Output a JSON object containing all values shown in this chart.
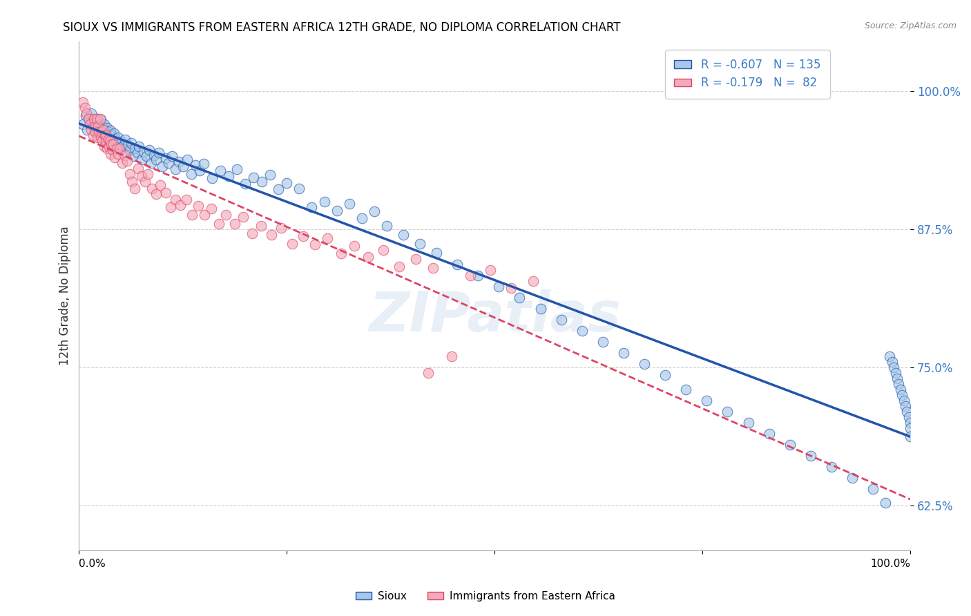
{
  "title": "SIOUX VS IMMIGRANTS FROM EASTERN AFRICA 12TH GRADE, NO DIPLOMA CORRELATION CHART",
  "source": "Source: ZipAtlas.com",
  "ylabel": "12th Grade, No Diploma",
  "yticks": [
    0.625,
    0.75,
    0.875,
    1.0
  ],
  "ytick_labels": [
    "62.5%",
    "75.0%",
    "87.5%",
    "100.0%"
  ],
  "xlim": [
    0.0,
    1.0
  ],
  "ylim": [
    0.585,
    1.045
  ],
  "legend_r1": "R = -0.607",
  "legend_n1": "N = 135",
  "legend_r2": "R = -0.179",
  "legend_n2": "N =  82",
  "color_blue": "#A8C8E8",
  "color_pink": "#F4AABB",
  "line_blue": "#2255AA",
  "line_pink": "#DD4466",
  "watermark": "ZIPatlas",
  "background": "#FFFFFF",
  "sioux_x": [
    0.005,
    0.008,
    0.01,
    0.012,
    0.015,
    0.016,
    0.018,
    0.019,
    0.02,
    0.021,
    0.022,
    0.023,
    0.024,
    0.025,
    0.026,
    0.027,
    0.028,
    0.029,
    0.03,
    0.031,
    0.032,
    0.033,
    0.034,
    0.035,
    0.036,
    0.037,
    0.038,
    0.039,
    0.04,
    0.041,
    0.042,
    0.043,
    0.044,
    0.045,
    0.047,
    0.049,
    0.051,
    0.053,
    0.055,
    0.057,
    0.059,
    0.061,
    0.063,
    0.065,
    0.067,
    0.07,
    0.072,
    0.075,
    0.078,
    0.081,
    0.084,
    0.087,
    0.09,
    0.093,
    0.096,
    0.1,
    0.104,
    0.108,
    0.112,
    0.116,
    0.12,
    0.125,
    0.13,
    0.135,
    0.14,
    0.145,
    0.15,
    0.16,
    0.17,
    0.18,
    0.19,
    0.2,
    0.21,
    0.22,
    0.23,
    0.24,
    0.25,
    0.265,
    0.28,
    0.295,
    0.31,
    0.325,
    0.34,
    0.355,
    0.37,
    0.39,
    0.41,
    0.43,
    0.455,
    0.48,
    0.505,
    0.53,
    0.555,
    0.58,
    0.605,
    0.63,
    0.655,
    0.68,
    0.705,
    0.73,
    0.755,
    0.78,
    0.805,
    0.83,
    0.855,
    0.88,
    0.905,
    0.93,
    0.955,
    0.97,
    0.975,
    0.978,
    0.98,
    0.982,
    0.984,
    0.986,
    0.988,
    0.99,
    0.992,
    0.994,
    0.996,
    0.998,
    1.0,
    1.0,
    1.0
  ],
  "sioux_y": [
    0.97,
    0.978,
    0.965,
    0.975,
    0.98,
    0.972,
    0.968,
    0.973,
    0.966,
    0.971,
    0.975,
    0.963,
    0.969,
    0.967,
    0.974,
    0.961,
    0.968,
    0.964,
    0.97,
    0.958,
    0.965,
    0.96,
    0.967,
    0.955,
    0.963,
    0.958,
    0.964,
    0.952,
    0.96,
    0.956,
    0.962,
    0.95,
    0.957,
    0.953,
    0.958,
    0.947,
    0.954,
    0.95,
    0.956,
    0.944,
    0.951,
    0.947,
    0.953,
    0.941,
    0.948,
    0.944,
    0.95,
    0.938,
    0.945,
    0.941,
    0.947,
    0.935,
    0.942,
    0.938,
    0.944,
    0.932,
    0.939,
    0.935,
    0.941,
    0.929,
    0.936,
    0.932,
    0.938,
    0.925,
    0.933,
    0.928,
    0.934,
    0.921,
    0.928,
    0.923,
    0.929,
    0.916,
    0.922,
    0.918,
    0.924,
    0.911,
    0.917,
    0.912,
    0.895,
    0.9,
    0.892,
    0.898,
    0.885,
    0.891,
    0.878,
    0.87,
    0.862,
    0.854,
    0.843,
    0.833,
    0.823,
    0.813,
    0.803,
    0.793,
    0.783,
    0.773,
    0.763,
    0.753,
    0.743,
    0.73,
    0.72,
    0.71,
    0.7,
    0.69,
    0.68,
    0.67,
    0.66,
    0.65,
    0.64,
    0.628,
    0.76,
    0.755,
    0.75,
    0.745,
    0.74,
    0.735,
    0.73,
    0.725,
    0.72,
    0.715,
    0.71,
    0.705,
    0.7,
    0.695,
    0.688
  ],
  "pink_x": [
    0.005,
    0.007,
    0.009,
    0.011,
    0.013,
    0.015,
    0.017,
    0.018,
    0.019,
    0.02,
    0.021,
    0.022,
    0.023,
    0.024,
    0.025,
    0.026,
    0.027,
    0.028,
    0.029,
    0.03,
    0.031,
    0.032,
    0.033,
    0.034,
    0.035,
    0.036,
    0.037,
    0.038,
    0.039,
    0.04,
    0.041,
    0.043,
    0.045,
    0.047,
    0.049,
    0.052,
    0.055,
    0.058,
    0.061,
    0.064,
    0.067,
    0.071,
    0.075,
    0.079,
    0.083,
    0.088,
    0.093,
    0.098,
    0.104,
    0.11,
    0.116,
    0.122,
    0.129,
    0.136,
    0.143,
    0.151,
    0.159,
    0.168,
    0.177,
    0.187,
    0.197,
    0.208,
    0.219,
    0.231,
    0.243,
    0.256,
    0.27,
    0.284,
    0.299,
    0.315,
    0.331,
    0.348,
    0.366,
    0.385,
    0.405,
    0.426,
    0.448,
    0.471,
    0.495,
    0.52,
    0.546,
    0.42
  ],
  "pink_y": [
    0.99,
    0.985,
    0.98,
    0.975,
    0.97,
    0.965,
    0.96,
    0.975,
    0.968,
    0.963,
    0.975,
    0.958,
    0.968,
    0.963,
    0.975,
    0.958,
    0.963,
    0.955,
    0.965,
    0.95,
    0.96,
    0.955,
    0.96,
    0.948,
    0.956,
    0.95,
    0.955,
    0.943,
    0.952,
    0.947,
    0.952,
    0.94,
    0.948,
    0.943,
    0.948,
    0.935,
    0.942,
    0.937,
    0.925,
    0.918,
    0.912,
    0.93,
    0.923,
    0.918,
    0.925,
    0.912,
    0.907,
    0.915,
    0.908,
    0.895,
    0.902,
    0.897,
    0.902,
    0.888,
    0.896,
    0.888,
    0.894,
    0.88,
    0.888,
    0.88,
    0.886,
    0.871,
    0.878,
    0.87,
    0.876,
    0.862,
    0.869,
    0.861,
    0.867,
    0.853,
    0.86,
    0.85,
    0.856,
    0.841,
    0.848,
    0.84,
    0.76,
    0.833,
    0.838,
    0.822,
    0.828,
    0.745
  ]
}
